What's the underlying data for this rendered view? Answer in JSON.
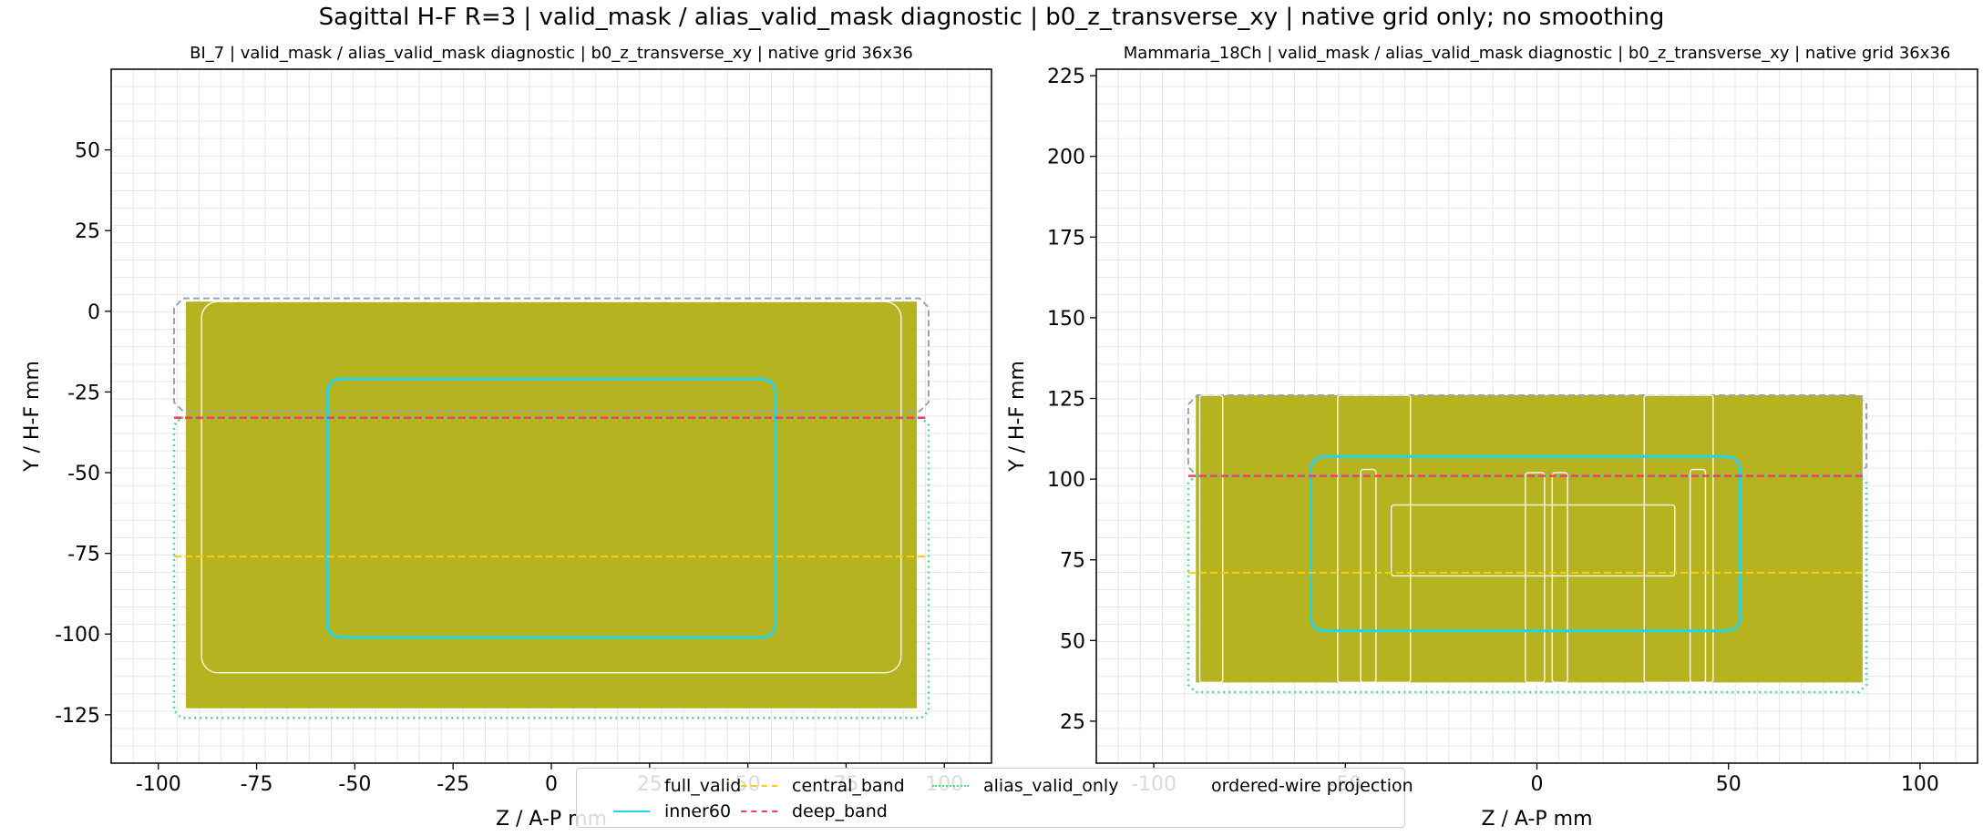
{
  "figure": {
    "suptitle": "Sagittal H-F R=3 | valid_mask / alias_valid_mask diagnostic | b0_z_transverse_xy | native grid only; no smoothing"
  },
  "colors": {
    "full_valid": "#b5b31f",
    "inner60": "#22d3ee",
    "central_band": "#facc15",
    "deep_band": "#f43f5e",
    "alias_valid_only": "#4ade80",
    "ordered_wire": "#ffffff",
    "alias_outline": "#9ca3af",
    "grid": "#e5e7eb"
  },
  "legend": {
    "items": [
      {
        "label": "full_valid",
        "key": "full_valid",
        "style": "none"
      },
      {
        "label": "inner60",
        "key": "inner60",
        "style": "solid"
      },
      {
        "label": "central_band",
        "key": "central_band",
        "style": "dashed"
      },
      {
        "label": "deep_band",
        "key": "deep_band",
        "style": "dashed"
      },
      {
        "label": "alias_valid_only",
        "key": "alias_valid_only",
        "style": "dotted"
      },
      {
        "label": "ordered-wire projection",
        "key": "ordered_wire",
        "style": "none"
      }
    ]
  },
  "chart_data": [
    {
      "type": "area",
      "title": "BI_7 | valid_mask / alias_valid_mask diagnostic | b0_z_transverse_xy | native grid 36x36",
      "xlabel": "Z / A-P mm",
      "ylabel": "Y / H-F mm",
      "xlim": [
        -112,
        112
      ],
      "ylim": [
        -140,
        75
      ],
      "xticks": [
        -100,
        -75,
        -50,
        -25,
        0,
        25,
        50,
        75,
        100
      ],
      "yticks": [
        50,
        25,
        0,
        -25,
        -50,
        -75,
        -100,
        -125
      ],
      "grid": true,
      "full_valid": {
        "x": [
          -93,
          93
        ],
        "y": [
          -123,
          3
        ]
      },
      "inner60": {
        "x": [
          -57,
          57
        ],
        "y": [
          -101,
          -21
        ]
      },
      "central_band_y": -76,
      "deep_band_y": -33,
      "alias_outline": {
        "x": [
          -96,
          96
        ],
        "y": [
          -31,
          4
        ]
      },
      "alias_valid_only": {
        "x": [
          -96,
          96
        ],
        "y": [
          -126,
          -33
        ]
      },
      "ordered_wire": [
        {
          "x": [
            -89,
            89
          ],
          "y": [
            -112,
            3
          ]
        }
      ]
    },
    {
      "type": "area",
      "title": "Mammaria_18Ch | valid_mask / alias_valid_mask diagnostic | b0_z_transverse_xy | native grid 36x36",
      "xlabel": "Z / A-P mm",
      "ylabel": "Y / H-F mm",
      "xlim": [
        -115,
        115
      ],
      "ylim": [
        12,
        227
      ],
      "xticks": [
        -100,
        -50,
        0,
        50,
        100
      ],
      "yticks": [
        225,
        200,
        175,
        150,
        125,
        100,
        75,
        50,
        25
      ],
      "grid": true,
      "full_valid": {
        "x": [
          -89,
          85
        ],
        "y": [
          37,
          126
        ]
      },
      "inner60": {
        "x": [
          -59,
          53
        ],
        "y": [
          53,
          107
        ]
      },
      "central_band_y": 71,
      "deep_band_y": 101,
      "alias_outline": {
        "x": [
          -91,
          86
        ],
        "y": [
          101,
          126
        ]
      },
      "alias_valid_only": {
        "x": [
          -91,
          86
        ],
        "y": [
          34,
          101
        ]
      },
      "ordered_wire": [
        {
          "x": [
            -88,
            -82
          ],
          "y": [
            37,
            126
          ]
        },
        {
          "x": [
            -52,
            -33
          ],
          "y": [
            37,
            126
          ]
        },
        {
          "x": [
            -46,
            -42
          ],
          "y": [
            37,
            103
          ]
        },
        {
          "x": [
            -3,
            2
          ],
          "y": [
            37,
            102
          ]
        },
        {
          "x": [
            4,
            8
          ],
          "y": [
            37,
            102
          ]
        },
        {
          "x": [
            28,
            46
          ],
          "y": [
            37,
            126
          ]
        },
        {
          "x": [
            40,
            44
          ],
          "y": [
            37,
            103
          ]
        },
        {
          "x": [
            -38,
            36
          ],
          "y": [
            70,
            92
          ]
        }
      ]
    }
  ]
}
